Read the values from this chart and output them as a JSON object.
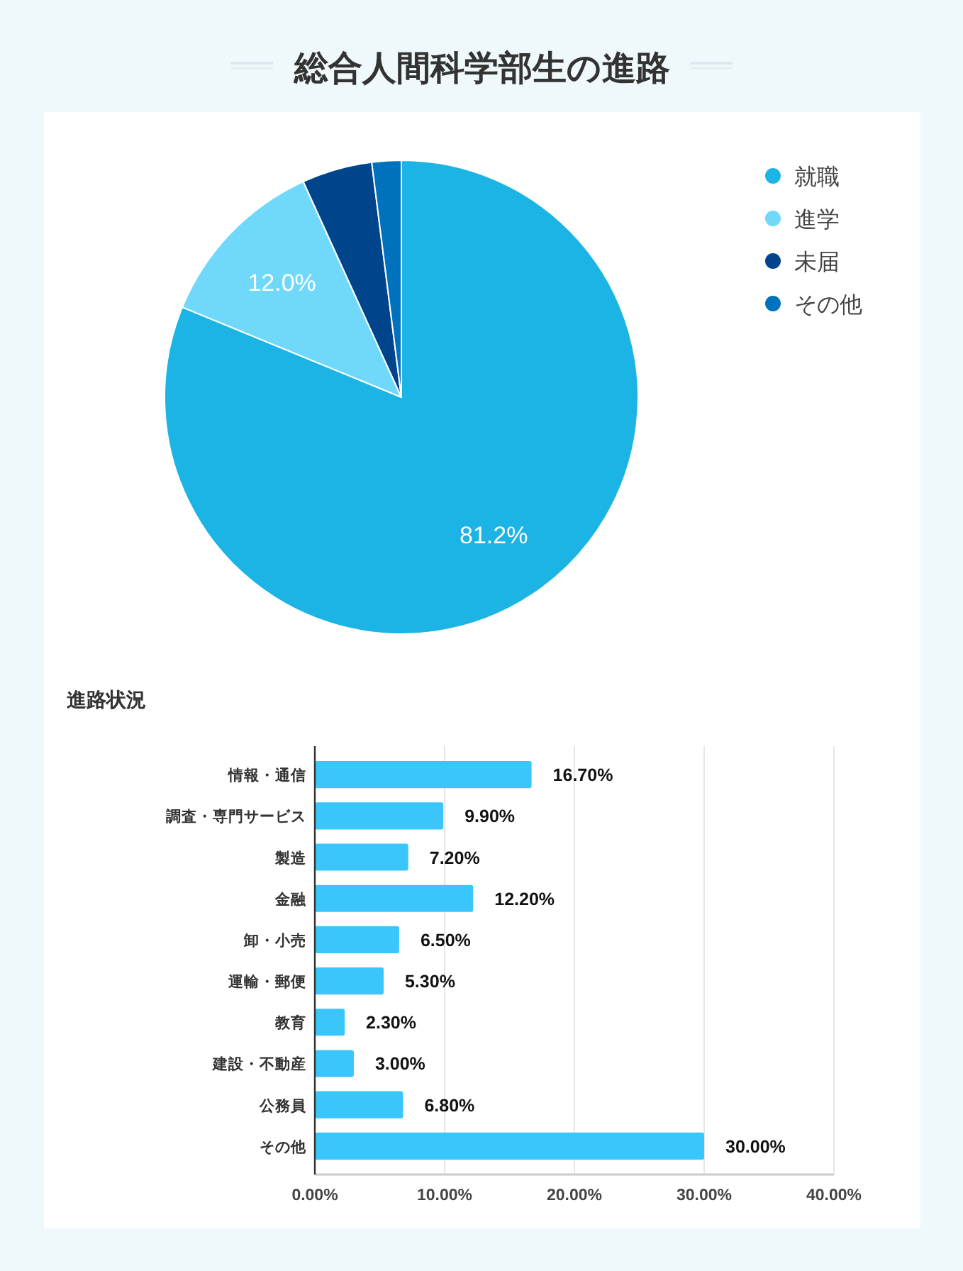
{
  "chart_data": [
    {
      "type": "pie",
      "title": "総合人間科学部生の進路",
      "categories": [
        "就職",
        "進学",
        "未届",
        "その他"
      ],
      "values": [
        81.2,
        12.0,
        4.8,
        2.0
      ],
      "colors": [
        "#1cb4e4",
        "#70d9fb",
        "#00458b",
        "#0072bd"
      ],
      "value_labels": [
        "81.2%",
        "12.0%",
        null,
        null
      ],
      "legend": "top right"
    },
    {
      "type": "bar",
      "orientation": "horizontal",
      "title": "進路状況",
      "categories": [
        "情報・通信",
        "調査・専門サービス",
        "製造",
        "金融",
        "卸・小売",
        "運輸・郵便",
        "教育",
        "建設・不動産",
        "公務員",
        "その他"
      ],
      "values": [
        16.7,
        9.9,
        7.2,
        12.2,
        6.5,
        5.3,
        2.3,
        3.0,
        6.8,
        30.0
      ],
      "color": "#3ac6fa",
      "value_labels": [
        "16.70%",
        "9.90%",
        "7.20%",
        "12.20%",
        "6.50%",
        "5.30%",
        "2.30%",
        "3.00%",
        "6.80%",
        "30.00%"
      ],
      "xlim": [
        0,
        40
      ],
      "xticks": [
        {
          "value": 0,
          "label": "0.00%"
        },
        {
          "value": 10,
          "label": "10.00%"
        },
        {
          "value": 20,
          "label": "20.00%"
        },
        {
          "value": 30,
          "label": "30.00%"
        },
        {
          "value": 40,
          "label": "40.00%"
        }
      ],
      "grid": "x"
    }
  ]
}
